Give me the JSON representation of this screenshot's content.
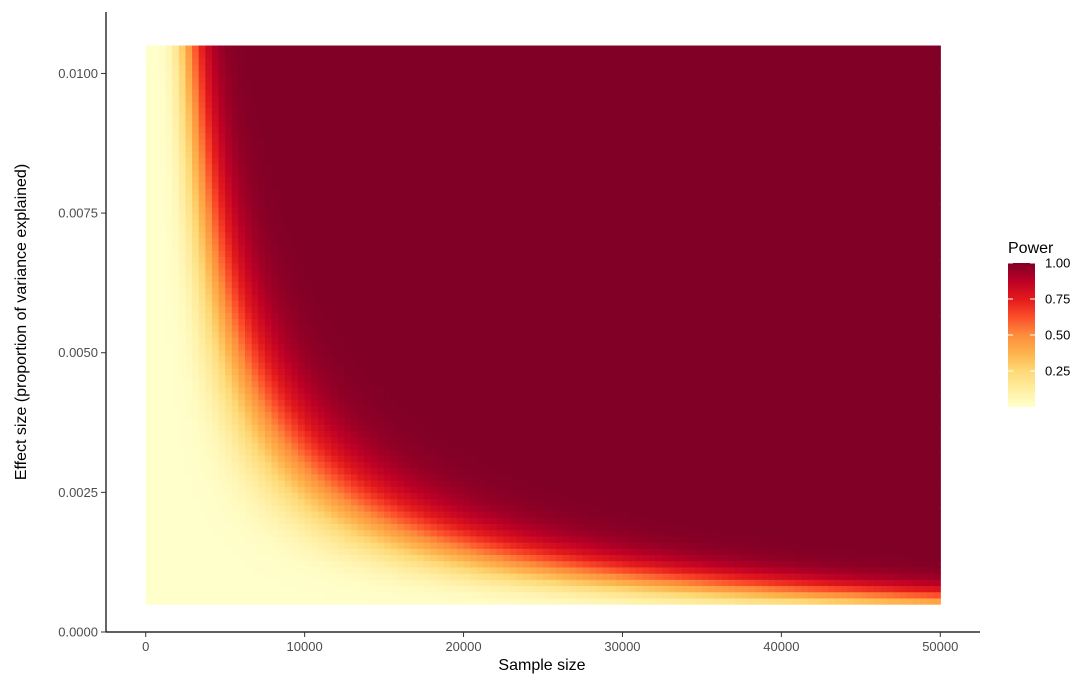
{
  "chart_data": {
    "type": "heatmap",
    "title": "",
    "xlabel": "Sample size",
    "ylabel": "Effect size (proportion of variance explained)",
    "xlim": [
      -2500,
      52500
    ],
    "ylim": [
      0,
      0.0111
    ],
    "x_range": [
      0,
      50000
    ],
    "y_range": [
      0.0005,
      0.0105
    ],
    "x_ticks": [
      0,
      10000,
      20000,
      30000,
      40000,
      50000
    ],
    "x_tick_labels": [
      "0",
      "10000",
      "20000",
      "30000",
      "40000",
      "50000"
    ],
    "y_ticks": [
      0.0,
      0.0025,
      0.005,
      0.0075,
      0.01
    ],
    "y_tick_labels": [
      "0.0000",
      "0.0025",
      "0.0050",
      "0.0075",
      "0.0100"
    ],
    "z_name": "Power",
    "model": "power of a test at alpha = 5e-8 for an effect explaining R2 of variance with sample size N (noncentrality = N*R2)",
    "z_range": [
      0,
      1
    ],
    "legend": {
      "title": "Power",
      "position": "right",
      "breaks": [
        0.25,
        0.5,
        0.75,
        1.0
      ],
      "labels": [
        "0.25",
        "0.50",
        "0.75",
        "1.00"
      ]
    },
    "colorscale": [
      "#ffffcc",
      "#ffeda0",
      "#fed976",
      "#feb24c",
      "#fd8d3c",
      "#fc4e2a",
      "#e31a1c",
      "#bd0026",
      "#800026"
    ],
    "grid": false
  }
}
